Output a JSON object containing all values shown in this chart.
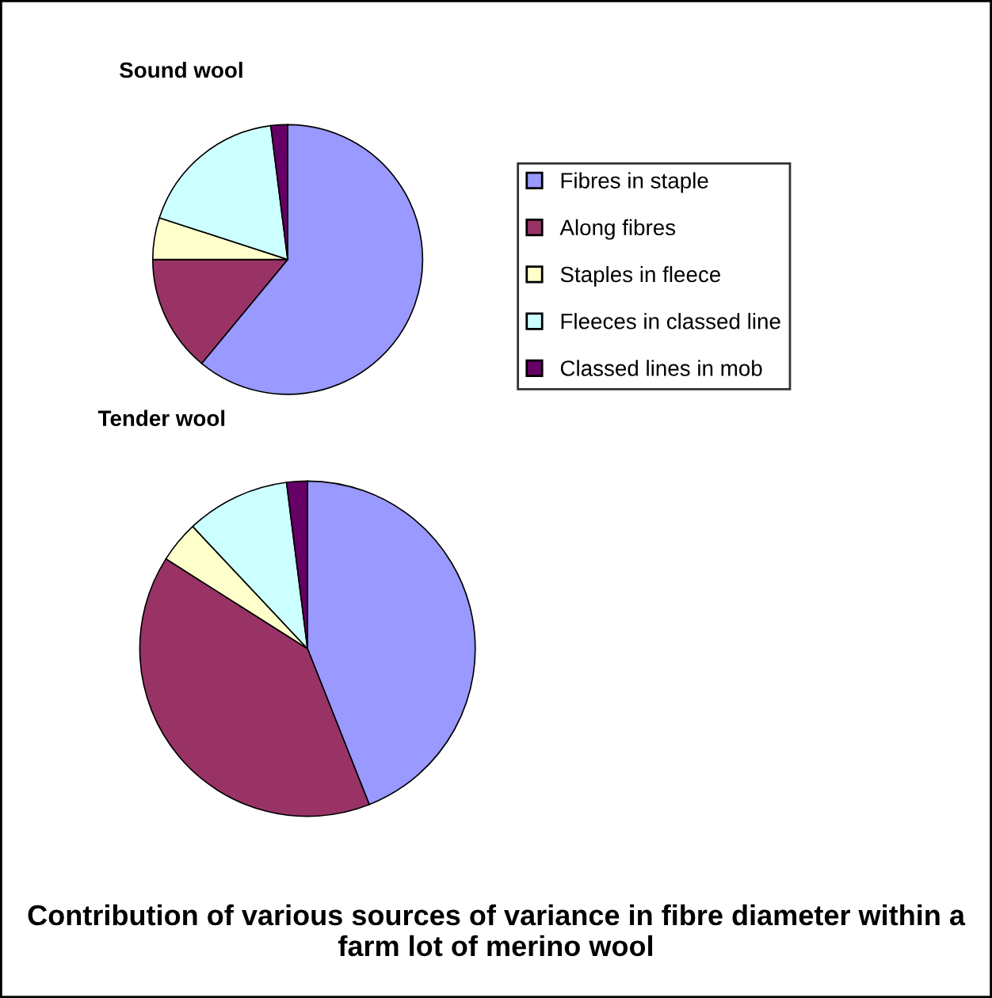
{
  "chart_data": [
    {
      "type": "pie",
      "title": "Sound wool",
      "categories": [
        "Fibres in staple",
        "Along fibres",
        "Staples in fleece",
        "Fleeces in classed line",
        "Classed lines in mob"
      ],
      "values": [
        61,
        14,
        5,
        18,
        2
      ],
      "colors": [
        "#9999ff",
        "#993366",
        "#ffffcc",
        "#ccffff",
        "#660066"
      ],
      "legend": "right"
    },
    {
      "type": "pie",
      "title": "Tender wool",
      "categories": [
        null,
        null,
        null,
        null,
        null
      ],
      "values": [
        44,
        40,
        4,
        10,
        2
      ],
      "colors": [
        "#9999ff",
        "#993366",
        "#ffffcc",
        "#ccffff",
        "#660066"
      ],
      "annotations": [
        "Contribution of various sources of variance in fibre diameter within a farm lot of merino wool"
      ]
    }
  ]
}
